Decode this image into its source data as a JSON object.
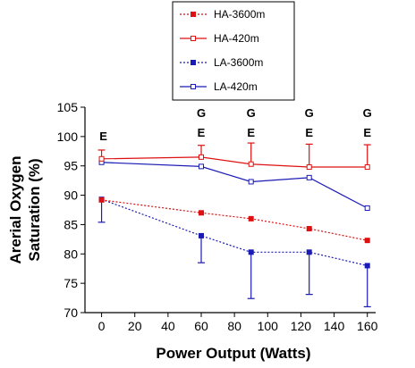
{
  "chart_data": {
    "type": "line",
    "xlabel": "Power Output (Watts)",
    "ylabel_lines": [
      "Arerial Oxygen",
      "Saturation (%)"
    ],
    "xlim": [
      -10,
      165
    ],
    "ylim": [
      70,
      105
    ],
    "xticks": [
      0,
      20,
      40,
      60,
      80,
      100,
      120,
      140,
      160
    ],
    "yticks": [
      70,
      75,
      80,
      85,
      90,
      95,
      100,
      105
    ],
    "series": [
      {
        "name": "HA-3600m",
        "color": "#dd1111",
        "line_style": "dotted",
        "marker": "filled-square",
        "x": [
          0,
          60,
          90,
          125,
          160
        ],
        "y": [
          89.2,
          87.0,
          86.0,
          84.3,
          82.3
        ],
        "error_up": []
      },
      {
        "name": "HA-420m",
        "color": "#dd1111",
        "line_style": "solid",
        "marker": "open-square",
        "x": [
          0,
          60,
          90,
          125,
          160
        ],
        "y": [
          96.2,
          96.5,
          95.3,
          94.8,
          94.8
        ],
        "error_up": [
          1.5,
          2.0,
          3.6,
          3.9,
          3.8
        ]
      },
      {
        "name": "LA-3600m",
        "color": "#1a1ab4",
        "line_style": "dotted",
        "marker": "filled-square",
        "x": [
          0,
          60,
          90,
          125,
          160
        ],
        "y": [
          89.3,
          83.1,
          80.3,
          80.3,
          78.0
        ],
        "error_down": [
          3.9,
          4.6,
          7.9,
          7.2,
          7.0
        ]
      },
      {
        "name": "LA-420m",
        "color": "#1a1ab4",
        "line_style": "solid",
        "marker": "open-square",
        "x": [
          0,
          60,
          90,
          125,
          160
        ],
        "y": [
          95.6,
          94.9,
          92.3,
          93.0,
          87.8
        ],
        "error_up": []
      }
    ],
    "annotations": [
      {
        "x": 0,
        "labels": [
          "E"
        ]
      },
      {
        "x": 60,
        "labels": [
          "G",
          "E"
        ]
      },
      {
        "x": 90,
        "labels": [
          "G",
          "E"
        ]
      },
      {
        "x": 125,
        "labels": [
          "G",
          "E"
        ]
      },
      {
        "x": 160,
        "labels": [
          "G",
          "E"
        ]
      }
    ],
    "legend_position": "top"
  }
}
